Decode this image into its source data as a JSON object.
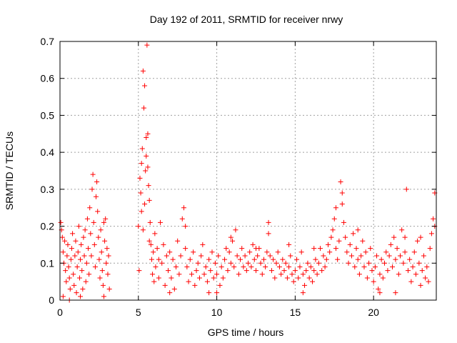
{
  "chart_data": {
    "type": "scatter",
    "title": "Day 192 of 2011, SRMTID for receiver nrwy",
    "xlabel": "GPS time / hours",
    "ylabel": "SRMTID / TECUs",
    "xlim": [
      0,
      24
    ],
    "ylim": [
      0,
      0.7
    ],
    "x_ticks": [
      0,
      5,
      10,
      15,
      20
    ],
    "y_ticks": [
      0,
      0.1,
      0.2,
      0.3,
      0.4,
      0.5,
      0.6,
      0.7
    ],
    "grid": true,
    "legend": "none",
    "marker": "+",
    "series_color": "#ff0000",
    "points": [
      [
        0.05,
        0.21
      ],
      [
        0.1,
        0.19
      ],
      [
        0.15,
        0.17
      ],
      [
        0.2,
        0.13
      ],
      [
        0.25,
        0.1
      ],
      [
        0.3,
        0.16
      ],
      [
        0.35,
        0.08
      ],
      [
        0.4,
        0.05
      ],
      [
        0.45,
        0.12
      ],
      [
        0.5,
        0.15
      ],
      [
        0.55,
        0.09
      ],
      [
        0.6,
        0.06
      ],
      [
        0.65,
        0.03
      ],
      [
        0.7,
        0.11
      ],
      [
        0.75,
        0.14
      ],
      [
        0.8,
        0.18
      ],
      [
        0.85,
        0.07
      ],
      [
        0.9,
        0.04
      ],
      [
        0.95,
        0.12
      ],
      [
        1.0,
        0.16
      ],
      [
        1.05,
        0.02
      ],
      [
        1.1,
        0.09
      ],
      [
        1.15,
        0.13
      ],
      [
        1.2,
        0.2
      ],
      [
        1.25,
        0.06
      ],
      [
        1.3,
        0.11
      ],
      [
        1.35,
        0.15
      ],
      [
        1.4,
        0.08
      ],
      [
        1.45,
        0.03
      ],
      [
        1.5,
        0.17
      ],
      [
        1.55,
        0.12
      ],
      [
        1.6,
        0.19
      ],
      [
        1.65,
        0.05
      ],
      [
        1.7,
        0.1
      ],
      [
        1.75,
        0.22
      ],
      [
        1.8,
        0.14
      ],
      [
        1.85,
        0.07
      ],
      [
        1.9,
        0.25
      ],
      [
        1.95,
        0.18
      ],
      [
        2.0,
        0.12
      ],
      [
        2.05,
        0.3
      ],
      [
        2.1,
        0.34
      ],
      [
        2.15,
        0.21
      ],
      [
        2.2,
        0.15
      ],
      [
        2.25,
        0.09
      ],
      [
        2.3,
        0.28
      ],
      [
        2.35,
        0.32
      ],
      [
        2.4,
        0.24
      ],
      [
        2.45,
        0.17
      ],
      [
        2.5,
        0.11
      ],
      [
        2.55,
        0.06
      ],
      [
        2.6,
        0.19
      ],
      [
        2.65,
        0.13
      ],
      [
        2.7,
        0.08
      ],
      [
        2.75,
        0.04
      ],
      [
        2.8,
        0.21
      ],
      [
        2.85,
        0.16
      ],
      [
        2.9,
        0.22
      ],
      [
        2.95,
        0.1
      ],
      [
        3.0,
        0.14
      ],
      [
        3.05,
        0.07
      ],
      [
        3.1,
        0.12
      ],
      [
        3.15,
        0.03
      ],
      [
        0.2,
        0.01
      ],
      [
        0.6,
        0.0
      ],
      [
        1.3,
        0.01
      ],
      [
        2.8,
        0.01
      ],
      [
        5.0,
        0.2
      ],
      [
        5.05,
        0.08
      ],
      [
        5.1,
        0.33
      ],
      [
        5.15,
        0.29
      ],
      [
        5.2,
        0.37
      ],
      [
        5.25,
        0.41
      ],
      [
        5.3,
        0.62
      ],
      [
        5.35,
        0.52
      ],
      [
        5.4,
        0.58
      ],
      [
        5.45,
        0.35
      ],
      [
        5.5,
        0.39
      ],
      [
        5.55,
        0.69
      ],
      [
        5.6,
        0.45
      ],
      [
        5.65,
        0.31
      ],
      [
        5.7,
        0.27
      ],
      [
        5.75,
        0.21
      ],
      [
        5.8,
        0.15
      ],
      [
        5.85,
        0.11
      ],
      [
        5.9,
        0.07
      ],
      [
        5.95,
        0.13
      ],
      [
        6.0,
        0.05
      ],
      [
        6.05,
        0.18
      ],
      [
        6.1,
        0.09
      ],
      [
        6.2,
        0.14
      ],
      [
        6.3,
        0.06
      ],
      [
        6.4,
        0.21
      ],
      [
        6.5,
        0.1
      ],
      [
        6.6,
        0.15
      ],
      [
        6.7,
        0.04
      ],
      [
        6.8,
        0.12
      ],
      [
        6.9,
        0.08
      ],
      [
        7.0,
        0.13
      ],
      [
        7.1,
        0.06
      ],
      [
        7.2,
        0.11
      ],
      [
        7.3,
        0.03
      ],
      [
        7.4,
        0.09
      ],
      [
        7.5,
        0.16
      ],
      [
        7.6,
        0.07
      ],
      [
        7.7,
        0.12
      ],
      [
        7.8,
        0.22
      ],
      [
        7.9,
        0.25
      ],
      [
        8.0,
        0.14
      ],
      [
        8.1,
        0.09
      ],
      [
        8.2,
        0.05
      ],
      [
        8.3,
        0.11
      ],
      [
        8.4,
        0.07
      ],
      [
        8.5,
        0.13
      ],
      [
        8.6,
        0.04
      ],
      [
        8.7,
        0.08
      ],
      [
        8.8,
        0.1
      ],
      [
        8.9,
        0.06
      ],
      [
        9.0,
        0.12
      ],
      [
        9.1,
        0.15
      ],
      [
        9.2,
        0.07
      ],
      [
        9.3,
        0.09
      ],
      [
        9.4,
        0.05
      ],
      [
        9.5,
        0.11
      ],
      [
        9.6,
        0.08
      ],
      [
        9.7,
        0.13
      ],
      [
        9.8,
        0.06
      ],
      [
        9.9,
        0.1
      ],
      [
        10.0,
        0.07
      ],
      [
        10.1,
        0.12
      ],
      [
        10.2,
        0.04
      ],
      [
        10.3,
        0.09
      ],
      [
        10.4,
        0.06
      ],
      [
        10.5,
        0.11
      ],
      [
        10.6,
        0.14
      ],
      [
        10.7,
        0.08
      ],
      [
        10.8,
        0.13
      ],
      [
        10.9,
        0.1
      ],
      [
        11.0,
        0.16
      ],
      [
        11.1,
        0.09
      ],
      [
        11.2,
        0.19
      ],
      [
        11.3,
        0.12
      ],
      [
        11.4,
        0.07
      ],
      [
        11.5,
        0.11
      ],
      [
        11.6,
        0.14
      ],
      [
        11.7,
        0.09
      ],
      [
        11.8,
        0.12
      ],
      [
        11.9,
        0.08
      ],
      [
        12.0,
        0.1
      ],
      [
        12.1,
        0.13
      ],
      [
        12.2,
        0.09
      ],
      [
        12.3,
        0.15
      ],
      [
        12.4,
        0.11
      ],
      [
        12.5,
        0.08
      ],
      [
        12.6,
        0.12
      ],
      [
        12.7,
        0.14
      ],
      [
        12.8,
        0.1
      ],
      [
        12.9,
        0.07
      ],
      [
        13.0,
        0.11
      ],
      [
        13.1,
        0.09
      ],
      [
        13.2,
        0.13
      ],
      [
        13.3,
        0.18
      ],
      [
        13.4,
        0.12
      ],
      [
        13.5,
        0.08
      ],
      [
        13.6,
        0.11
      ],
      [
        13.7,
        0.06
      ],
      [
        13.8,
        0.1
      ],
      [
        13.9,
        0.13
      ],
      [
        14.0,
        0.09
      ],
      [
        14.1,
        0.07
      ],
      [
        14.2,
        0.11
      ],
      [
        14.3,
        0.08
      ],
      [
        14.4,
        0.1
      ],
      [
        14.5,
        0.06
      ],
      [
        14.6,
        0.09
      ],
      [
        14.7,
        0.12
      ],
      [
        14.8,
        0.07
      ],
      [
        14.9,
        0.05
      ],
      [
        15.0,
        0.08
      ],
      [
        15.1,
        0.11
      ],
      [
        15.2,
        0.06
      ],
      [
        15.3,
        0.09
      ],
      [
        15.4,
        0.13
      ],
      [
        15.5,
        0.07
      ],
      [
        15.6,
        0.04
      ],
      [
        15.7,
        0.08
      ],
      [
        15.8,
        0.1
      ],
      [
        15.9,
        0.06
      ],
      [
        16.0,
        0.09
      ],
      [
        16.1,
        0.05
      ],
      [
        16.2,
        0.08
      ],
      [
        16.3,
        0.11
      ],
      [
        16.4,
        0.07
      ],
      [
        16.5,
        0.1
      ],
      [
        16.6,
        0.14
      ],
      [
        16.7,
        0.08
      ],
      [
        16.8,
        0.12
      ],
      [
        16.9,
        0.09
      ],
      [
        17.0,
        0.11
      ],
      [
        17.1,
        0.15
      ],
      [
        17.2,
        0.13
      ],
      [
        17.3,
        0.17
      ],
      [
        17.4,
        0.19
      ],
      [
        17.5,
        0.22
      ],
      [
        17.6,
        0.14
      ],
      [
        17.7,
        0.11
      ],
      [
        17.8,
        0.16
      ],
      [
        17.9,
        0.32
      ],
      [
        18.0,
        0.29
      ],
      [
        18.1,
        0.21
      ],
      [
        18.2,
        0.17
      ],
      [
        18.3,
        0.13
      ],
      [
        18.4,
        0.1
      ],
      [
        18.5,
        0.15
      ],
      [
        18.6,
        0.12
      ],
      [
        18.7,
        0.18
      ],
      [
        18.8,
        0.09
      ],
      [
        18.9,
        0.14
      ],
      [
        19.0,
        0.11
      ],
      [
        19.1,
        0.07
      ],
      [
        19.2,
        0.12
      ],
      [
        19.3,
        0.16
      ],
      [
        19.4,
        0.09
      ],
      [
        19.5,
        0.13
      ],
      [
        19.6,
        0.06
      ],
      [
        19.7,
        0.1
      ],
      [
        19.8,
        0.14
      ],
      [
        19.9,
        0.08
      ],
      [
        20.0,
        0.05
      ],
      [
        20.1,
        0.09
      ],
      [
        20.2,
        0.12
      ],
      [
        20.3,
        0.03
      ],
      [
        20.4,
        0.07
      ],
      [
        20.5,
        0.11
      ],
      [
        20.6,
        0.06
      ],
      [
        20.7,
        0.1
      ],
      [
        20.8,
        0.13
      ],
      [
        20.9,
        0.08
      ],
      [
        21.0,
        0.12
      ],
      [
        21.1,
        0.15
      ],
      [
        21.2,
        0.09
      ],
      [
        21.3,
        0.17
      ],
      [
        21.4,
        0.11
      ],
      [
        21.5,
        0.14
      ],
      [
        21.6,
        0.07
      ],
      [
        21.7,
        0.12
      ],
      [
        21.8,
        0.19
      ],
      [
        21.9,
        0.1
      ],
      [
        22.0,
        0.13
      ],
      [
        22.1,
        0.3
      ],
      [
        22.2,
        0.08
      ],
      [
        22.3,
        0.11
      ],
      [
        22.4,
        0.05
      ],
      [
        22.5,
        0.09
      ],
      [
        22.6,
        0.13
      ],
      [
        22.7,
        0.07
      ],
      [
        22.8,
        0.16
      ],
      [
        22.9,
        0.1
      ],
      [
        23.0,
        0.04
      ],
      [
        23.1,
        0.08
      ],
      [
        23.2,
        0.12
      ],
      [
        23.3,
        0.06
      ],
      [
        23.4,
        0.09
      ],
      [
        23.5,
        0.05
      ],
      [
        23.6,
        0.14
      ],
      [
        23.7,
        0.18
      ],
      [
        23.8,
        0.22
      ],
      [
        23.9,
        0.29
      ],
      [
        5.3,
        0.19
      ],
      [
        5.5,
        0.44
      ],
      [
        5.6,
        0.36
      ],
      [
        5.7,
        0.16
      ],
      [
        5.4,
        0.26
      ],
      [
        5.2,
        0.24
      ],
      [
        6.3,
        0.11
      ],
      [
        7.0,
        0.02
      ],
      [
        8.0,
        0.2
      ],
      [
        9.5,
        0.02
      ],
      [
        10.0,
        0.02
      ],
      [
        10.9,
        0.17
      ],
      [
        12.5,
        0.14
      ],
      [
        13.3,
        0.21
      ],
      [
        14.6,
        0.15
      ],
      [
        15.5,
        0.02
      ],
      [
        16.2,
        0.14
      ],
      [
        17.6,
        0.25
      ],
      [
        18.0,
        0.26
      ],
      [
        19.0,
        0.19
      ],
      [
        20.4,
        0.02
      ],
      [
        21.4,
        0.02
      ],
      [
        22.0,
        0.17
      ],
      [
        23.0,
        0.17
      ],
      [
        23.9,
        0.2
      ]
    ]
  }
}
